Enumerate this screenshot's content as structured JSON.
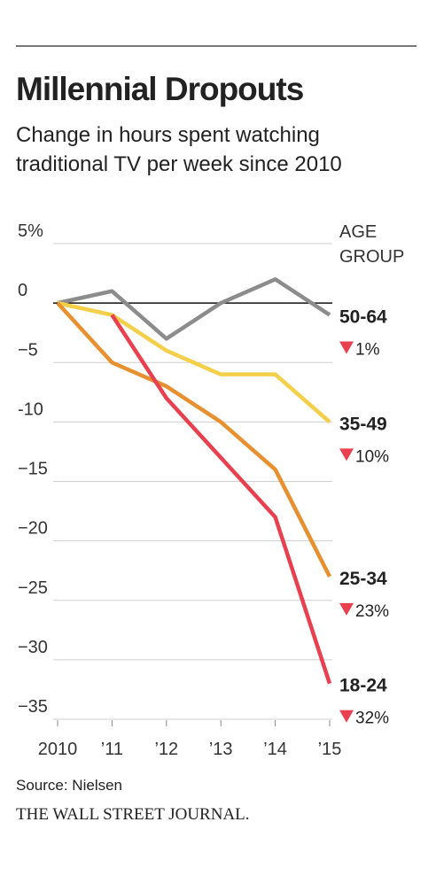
{
  "chart_data": {
    "type": "line",
    "title": "Millennial Dropouts",
    "subtitle": [
      "Change in hours spent watching",
      "traditional TV per week since 2010"
    ],
    "legend_title": [
      "AGE",
      "GROUP"
    ],
    "categories": [
      "2010",
      "’11",
      "’12",
      "’13",
      "’14",
      "’15"
    ],
    "series": [
      {
        "name": "50-64",
        "color": "#8c8c8c",
        "values": [
          0,
          1,
          -3,
          0,
          2,
          -1
        ],
        "change": "1%"
      },
      {
        "name": "35-49",
        "color": "#f3cf4a",
        "values": [
          0,
          -1,
          -4,
          -6,
          -6,
          -10
        ],
        "change": "10%"
      },
      {
        "name": "25-34",
        "color": "#e88f2f",
        "values": [
          0,
          -5,
          -7,
          -10,
          -14,
          -23
        ],
        "change": "23%"
      },
      {
        "name": "18-24",
        "color": "#e8404e",
        "values": [
          null,
          -1,
          -8,
          -13,
          -18,
          -32
        ],
        "change": "32%"
      }
    ],
    "ylim": [
      -35,
      5
    ],
    "yticks": [
      {
        "value": 5,
        "label": "5%"
      },
      0,
      {
        "value": -5,
        "label": "−5"
      },
      {
        "value": -10,
        "label": "-10"
      },
      {
        "value": -15,
        "label": "−15"
      },
      {
        "value": -20,
        "label": "−20"
      },
      {
        "value": -25,
        "label": "−25"
      },
      {
        "value": -30,
        "label": "−30"
      },
      {
        "value": -35,
        "label": "−35"
      }
    ],
    "grid": true,
    "source": "Source: Nielsen",
    "publisher": "THE WALL STREET JOURNAL."
  }
}
